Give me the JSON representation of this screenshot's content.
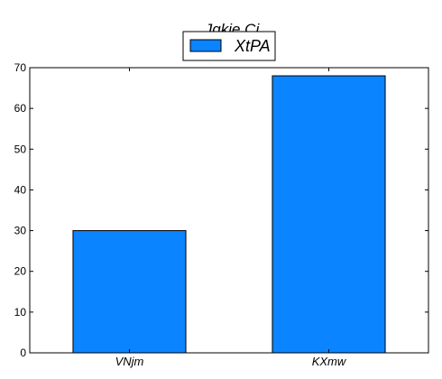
{
  "chart_data": {
    "type": "bar",
    "title": "Jqkie Ci",
    "categories": [
      "VNjm",
      "KXmw"
    ],
    "series": [
      {
        "name": "XtPA",
        "values": [
          30,
          68
        ],
        "color": "#0a84ff"
      }
    ],
    "ylim": [
      0,
      70
    ],
    "yticks": [
      0,
      10,
      20,
      30,
      40,
      50,
      60,
      70
    ],
    "grid": false,
    "legend": "top-center"
  }
}
